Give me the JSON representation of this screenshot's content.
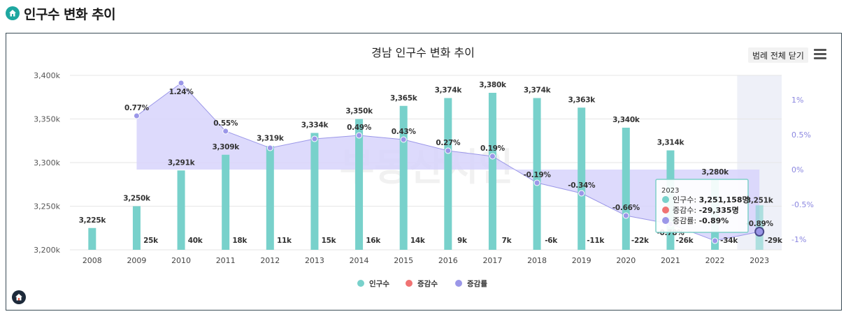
{
  "page": {
    "title": "인구수 변화 추이"
  },
  "chart_ui": {
    "legend_toggle_label": "범례 전체 닫기",
    "menu_icon": "hamburger-menu-icon",
    "header_icon": "home-icon",
    "logo_icon": "home-logo-icon"
  },
  "watermark": "부동산지인",
  "colors": {
    "population": "#78d1cb",
    "change": "#f07373",
    "rate": "#9b97e8",
    "rate_fill": "#d7d4fb",
    "highlight_band": "#eef0f8",
    "accent": "#1ea7a0"
  },
  "chart_data": {
    "type": "bar",
    "title": "경남 인구수 변화 추이",
    "categories": [
      "2008",
      "2009",
      "2010",
      "2011",
      "2012",
      "2013",
      "2014",
      "2015",
      "2016",
      "2017",
      "2018",
      "2019",
      "2020",
      "2021",
      "2022",
      "2023"
    ],
    "series": [
      {
        "name": "인구수",
        "type": "bar",
        "axis": "left",
        "values": [
          3225,
          3250,
          3291,
          3309,
          3319,
          3334,
          3350,
          3365,
          3374,
          3380,
          3374,
          3363,
          3340,
          3314,
          3280,
          3251
        ],
        "labels": [
          "3,225k",
          "3,250k",
          "3,291k",
          "3,309k",
          "3,319k",
          "3,334k",
          "3,350k",
          "3,365k",
          "3,374k",
          "3,380k",
          "3,374k",
          "3,363k",
          "3,340k",
          "3,314k",
          "3,280k",
          "3,251k"
        ]
      },
      {
        "name": "증감수",
        "type": "bar",
        "axis": "hidden",
        "values": [
          null,
          25,
          40,
          18,
          11,
          15,
          16,
          14,
          9,
          7,
          -6,
          -11,
          -22,
          -26,
          -34,
          -29
        ],
        "labels": [
          "",
          "25k",
          "40k",
          "18k",
          "11k",
          "15k",
          "16k",
          "14k",
          "9k",
          "7k",
          "-6k",
          "-11k",
          "-22k",
          "-26k",
          "-34k",
          "-29k"
        ]
      },
      {
        "name": "증감률",
        "type": "area-line",
        "axis": "right",
        "values": [
          null,
          0.77,
          1.24,
          0.55,
          0.31,
          0.44,
          0.49,
          0.43,
          0.27,
          0.19,
          -0.19,
          -0.34,
          -0.66,
          -0.78,
          -1.02,
          -0.89
        ],
        "labels": [
          "",
          "0.77%",
          "1.24%",
          "0.55%",
          "",
          "",
          "0.49%",
          "0.43%",
          "0.27%",
          "0.19%",
          "-0.19%",
          "-0.34%",
          "-0.66%",
          "-0.78%",
          "",
          "-0.89%"
        ]
      }
    ],
    "y_left": {
      "ticks": [
        "3,200k",
        "3,250k",
        "3,300k",
        "3,350k",
        "3,400k"
      ],
      "values": [
        3200,
        3250,
        3300,
        3350,
        3400
      ],
      "ylim": [
        3200,
        3400
      ]
    },
    "y_right": {
      "ticks": [
        "-1%",
        "-0.5%",
        "0%",
        "0.5%",
        "1%"
      ],
      "values": [
        -1,
        -0.5,
        0,
        0.5,
        1
      ]
    },
    "grid": true,
    "legend": {
      "position": "bottom",
      "items": [
        "인구수",
        "증감수",
        "증감률"
      ]
    },
    "highlighted_category": "2023",
    "tooltip": {
      "header": "2023",
      "rows": [
        {
          "series": "인구수",
          "label": "인구수: ",
          "value": "3,251,158명"
        },
        {
          "series": "증감수",
          "label": "증감수: ",
          "value": "-29,335명"
        },
        {
          "series": "증감률",
          "label": "증감률: ",
          "value": "-0.89%"
        }
      ]
    }
  }
}
